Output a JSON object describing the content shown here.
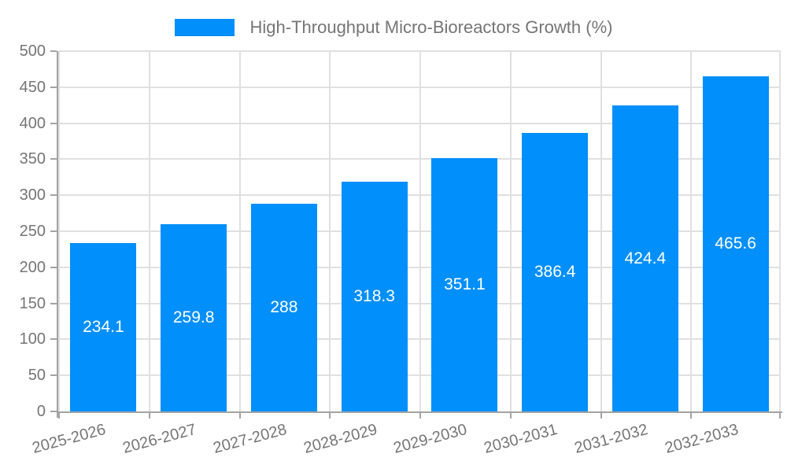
{
  "legend": {
    "label": "High-Throughput Micro-Bioreactors Growth (%)"
  },
  "style": {
    "bar_color": "#008FFB",
    "grid_color": "#e0e0e0",
    "axis_color": "#a3a3a3",
    "tick_label_color": "#757575",
    "legend_text_color": "#757575",
    "value_label_color": "#ffffff",
    "background": "#ffffff"
  },
  "chart_data": {
    "type": "bar",
    "title": "High-Throughput Micro-Bioreactors Growth (%)",
    "series_name": "High-Throughput Micro-Bioreactors Growth (%)",
    "categories": [
      "2025-2026",
      "2026-2027",
      "2027-2028",
      "2028-2029",
      "2029-2030",
      "2030-2031",
      "2031-2032",
      "2032-2033"
    ],
    "values": [
      234.1,
      259.8,
      288,
      318.3,
      351.1,
      386.4,
      424.4,
      465.6
    ],
    "value_labels": [
      "234.1",
      "259.8",
      "288",
      "318.3",
      "351.1",
      "386.4",
      "424.4",
      "465.6"
    ],
    "xlabel": "",
    "ylabel": "",
    "ylim": [
      0,
      500
    ],
    "y_ticks": [
      0,
      50,
      100,
      150,
      200,
      250,
      300,
      350,
      400,
      450,
      500
    ],
    "grid": true,
    "legend_position": "top-center",
    "x_label_rotation_deg": -15,
    "value_label_position": "inside-center"
  }
}
